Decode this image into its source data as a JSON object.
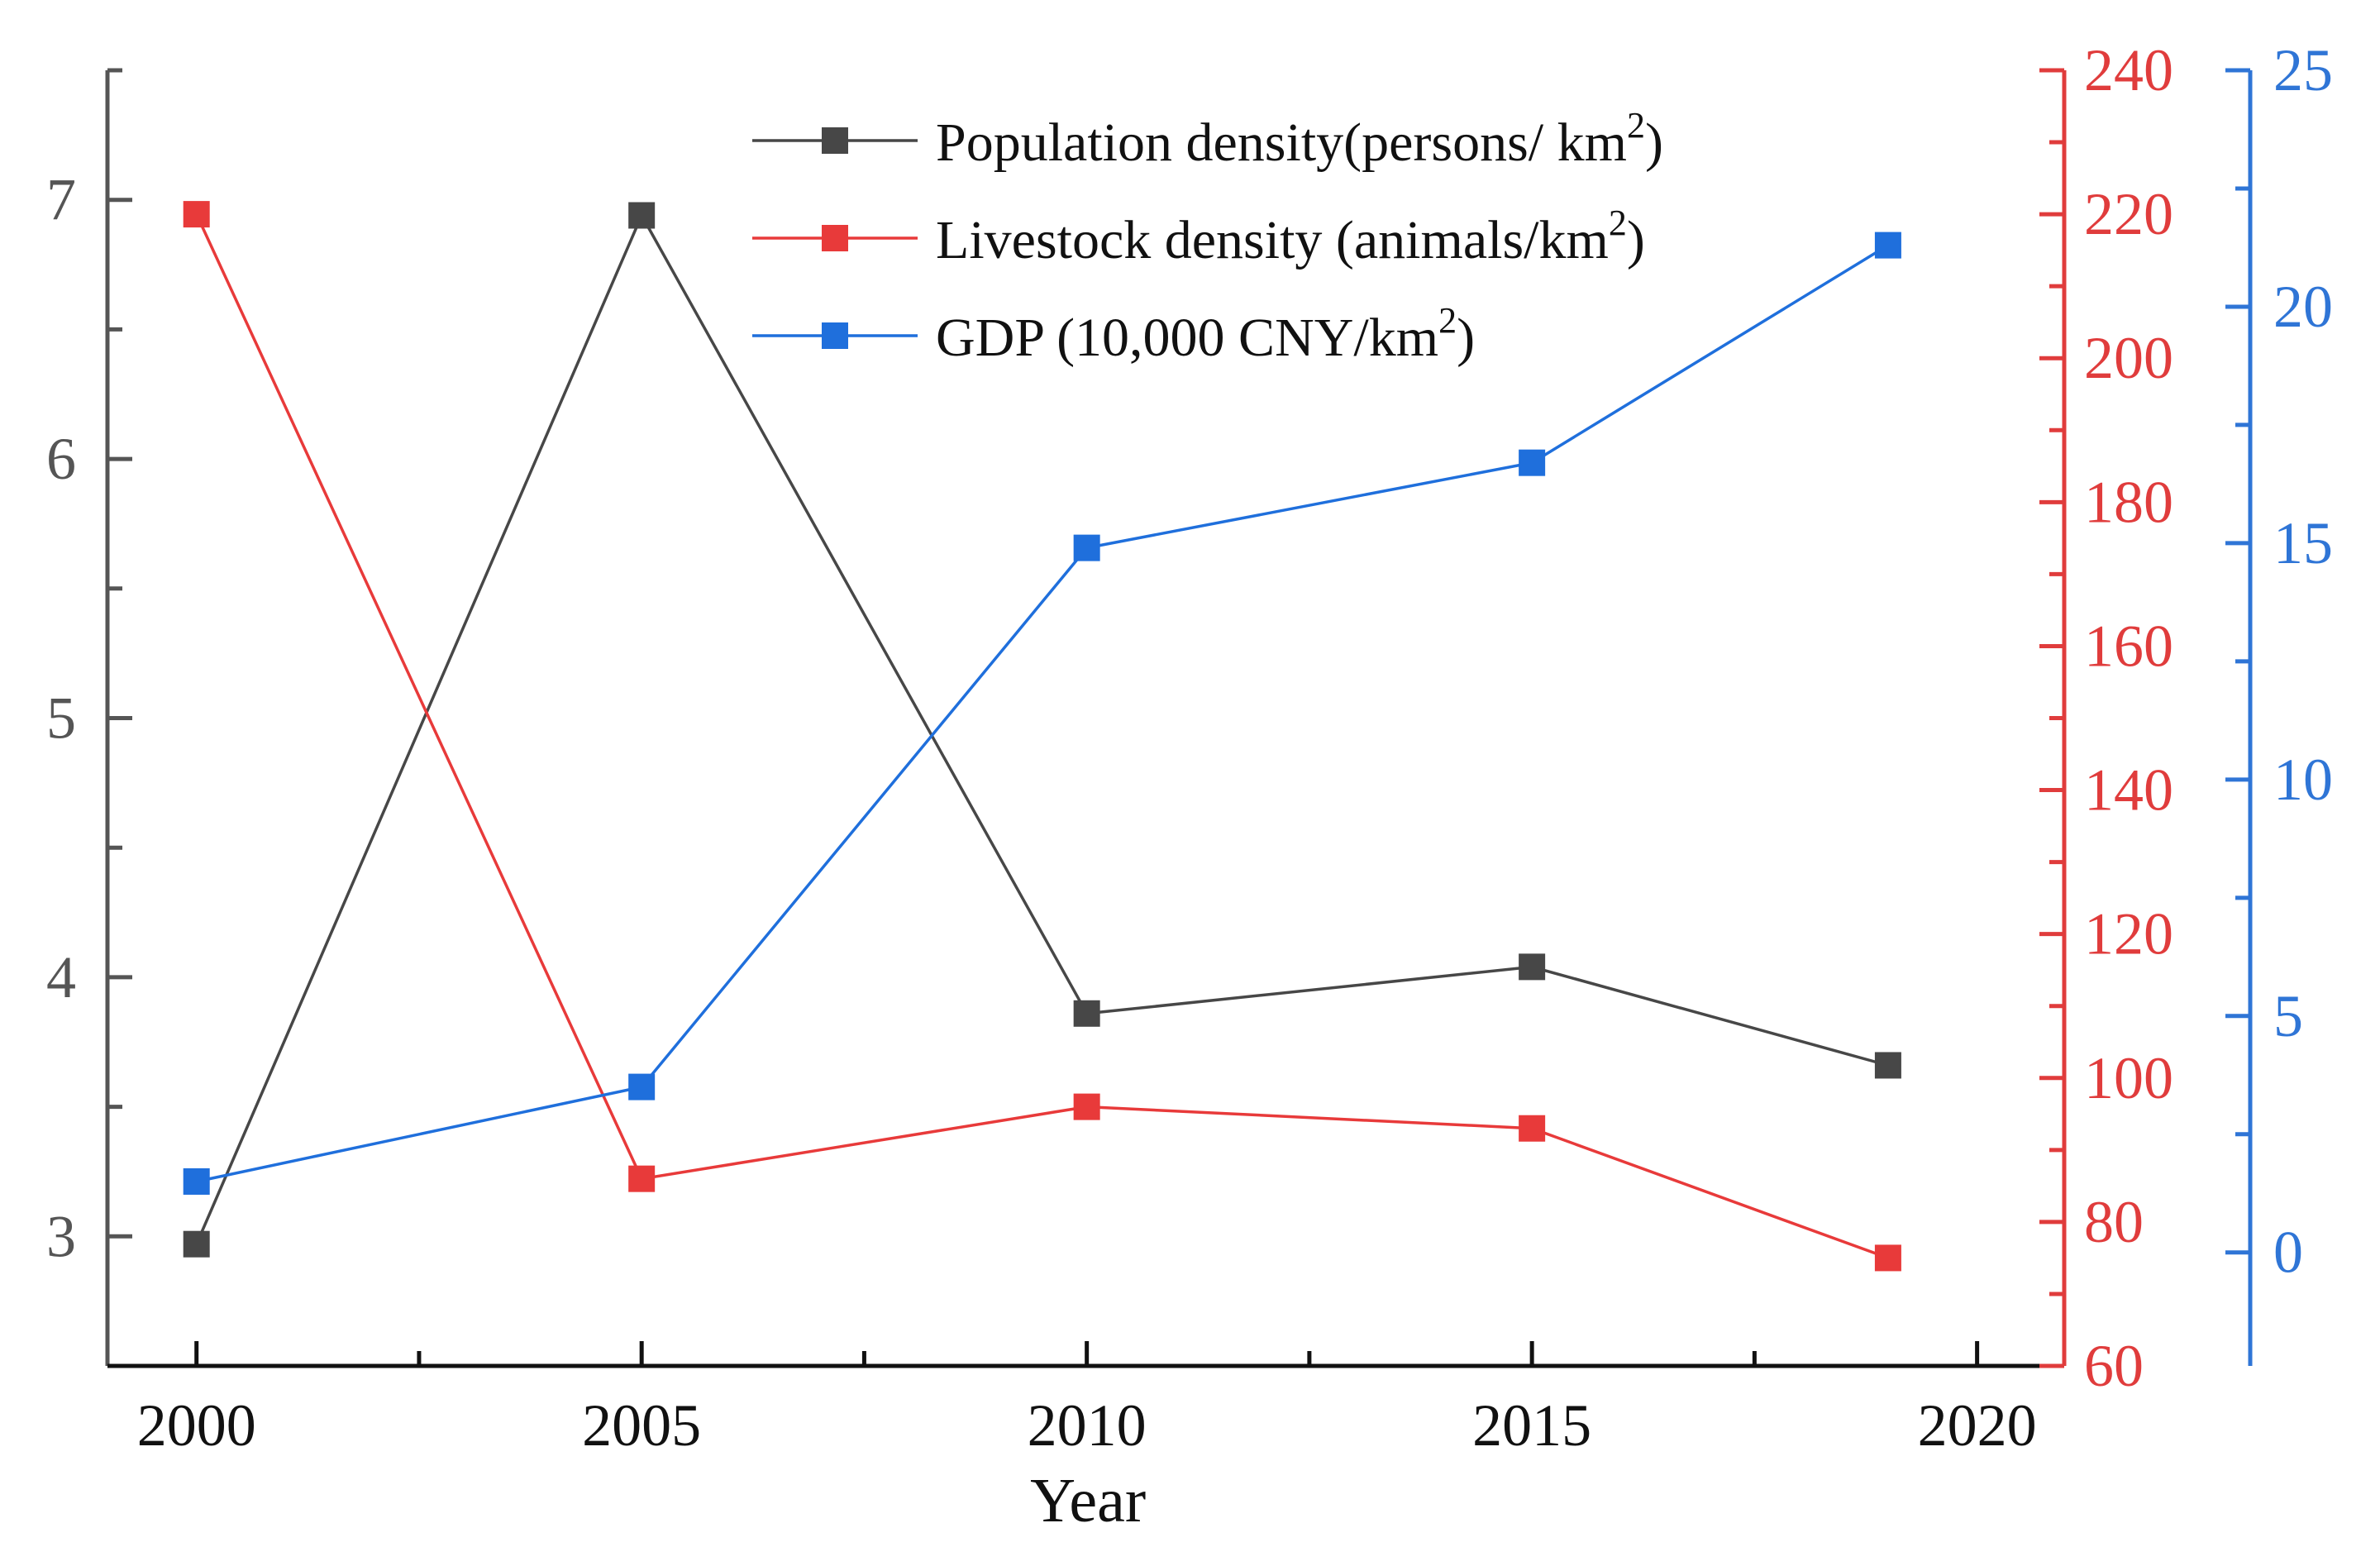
{
  "chart_data": {
    "type": "line",
    "title": "",
    "xlabel": "Year",
    "x": [
      2000,
      2005,
      2010,
      2015,
      2019
    ],
    "x_ticks": [
      "2000",
      "2005",
      "2010",
      "2015",
      "2020"
    ],
    "xlim": [
      1999,
      2020.7
    ],
    "axes": {
      "left": {
        "ylim": [
          2.5,
          7.5
        ],
        "ticks": [
          "3",
          "4",
          "5",
          "6",
          "7"
        ],
        "color": "#555555"
      },
      "right1": {
        "ylim": [
          60,
          240
        ],
        "ticks": [
          "60",
          "80",
          "100",
          "120",
          "140",
          "160",
          "180",
          "200",
          "220",
          "240"
        ],
        "color": "#e03c3c"
      },
      "right2": {
        "ylim": [
          -2.4,
          25
        ],
        "ticks": [
          "0",
          "5",
          "10",
          "15",
          "20",
          "25"
        ],
        "color": "#2f75d6"
      }
    },
    "series": [
      {
        "name": "Population density(persons/ km",
        "sup": "2",
        "close": ")",
        "axis": "left",
        "color": "#474747",
        "values": [
          2.97,
          6.94,
          3.86,
          4.04,
          3.66
        ]
      },
      {
        "name": "Livestock density (animals/km",
        "sup": "2",
        "close": ")",
        "axis": "right1",
        "color": "#e83a3a",
        "values": [
          220,
          86,
          96,
          93,
          75
        ]
      },
      {
        "name": "GDP (10,000 CNY/km",
        "sup": "2",
        "close": ")",
        "axis": "right2",
        "color": "#1f6fdc",
        "values": [
          1.5,
          3.5,
          14.9,
          16.7,
          21.3
        ]
      }
    ],
    "legend": "top-center",
    "grid": false
  }
}
